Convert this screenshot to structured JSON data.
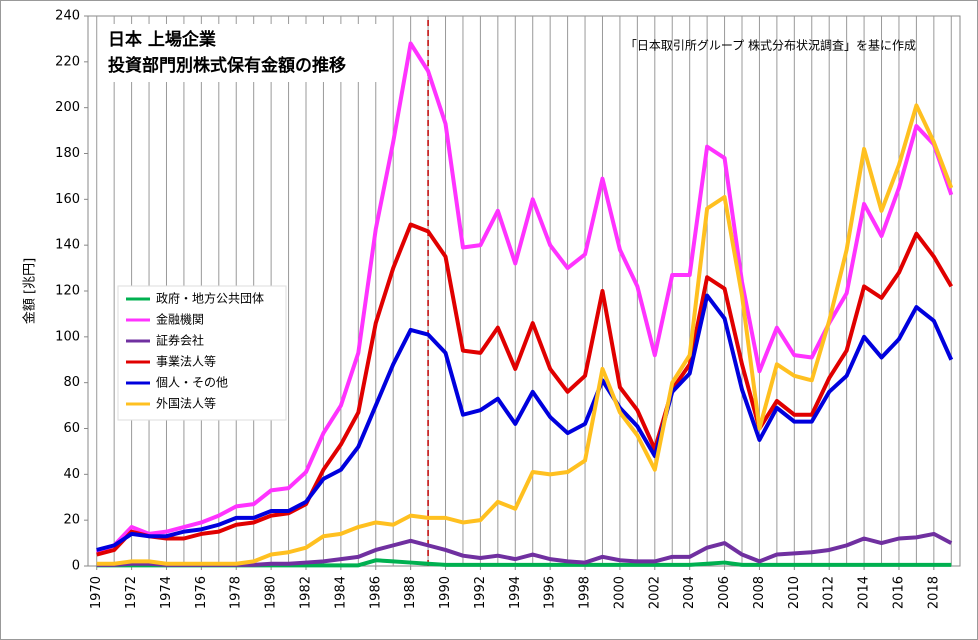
{
  "chart_data": {
    "type": "line",
    "title_lines": [
      "日本 上場企業",
      "投資部門別株式保有金額の推移"
    ],
    "source": "「日本取引所グループ 株式分布状況調査」を基に作成",
    "y_label": "金額 [兆円]",
    "x": [
      1970,
      1971,
      1972,
      1973,
      1974,
      1975,
      1976,
      1977,
      1978,
      1979,
      1980,
      1981,
      1982,
      1983,
      1984,
      1985,
      1986,
      1987,
      1988,
      1989,
      1990,
      1991,
      1992,
      1993,
      1994,
      1995,
      1996,
      1997,
      1998,
      1999,
      2000,
      2001,
      2002,
      2003,
      2004,
      2005,
      2006,
      2007,
      2008,
      2009,
      2010,
      2011,
      2012,
      2013,
      2014,
      2015,
      2016,
      2017,
      2018,
      2019
    ],
    "xlim": [
      1969.5,
      2019.5
    ],
    "xticks": [
      1970,
      1972,
      1974,
      1976,
      1978,
      1980,
      1982,
      1984,
      1986,
      1988,
      1990,
      1992,
      1994,
      1996,
      1998,
      2000,
      2002,
      2004,
      2006,
      2008,
      2010,
      2012,
      2014,
      2016,
      2018
    ],
    "ylim": [
      0,
      240
    ],
    "yticks": [
      0,
      20,
      40,
      60,
      80,
      100,
      120,
      140,
      160,
      180,
      200,
      220,
      240
    ],
    "grid": "x",
    "legend": "left",
    "reference_line": {
      "x": 1989,
      "color": "#c00000",
      "style": "dashed"
    },
    "series": [
      {
        "name": "政府・地方公共団体",
        "color": "#00b050",
        "values": [
          0.3,
          0.3,
          0.3,
          0.3,
          0.3,
          0.3,
          0.3,
          0.3,
          0.3,
          0.3,
          0.3,
          0.3,
          0.3,
          0.3,
          0.3,
          0.3,
          2.5,
          2,
          1.5,
          1,
          0.5,
          0.5,
          0.5,
          0.5,
          0.5,
          0.5,
          0.5,
          0.5,
          0.5,
          0.5,
          0.5,
          0.5,
          0.5,
          0.5,
          0.5,
          1,
          1.5,
          0.5,
          0.5,
          0.5,
          0.5,
          0.5,
          0.5,
          0.5,
          0.5,
          0.5,
          0.5,
          0.5,
          0.5,
          0.5
        ]
      },
      {
        "name": "金融機関",
        "color": "#ff33ff",
        "values": [
          6,
          9,
          17,
          14,
          15,
          17,
          19,
          22,
          26,
          27,
          33,
          34,
          41,
          58,
          70,
          93,
          147,
          185,
          228,
          216,
          193,
          139,
          140,
          155,
          132,
          160,
          140,
          130,
          136,
          169,
          138,
          122,
          92,
          127,
          127,
          183,
          178,
          124,
          85,
          104,
          92,
          91,
          106,
          119,
          158,
          144,
          165,
          192,
          184,
          162
        ]
      },
      {
        "name": "証券会社",
        "color": "#7030a0",
        "values": [
          0.5,
          0.5,
          1,
          1,
          0.5,
          0.5,
          0.5,
          0.5,
          0.5,
          0.5,
          1,
          1,
          1.5,
          2,
          3,
          4,
          7,
          9,
          11,
          9,
          7,
          4.5,
          3.5,
          4.5,
          3,
          5,
          3,
          2,
          1.5,
          4,
          2.5,
          2,
          2,
          4,
          4,
          8,
          10,
          5,
          2,
          5,
          5.5,
          6,
          7,
          9,
          12,
          10,
          12,
          12.5,
          14,
          10
        ]
      },
      {
        "name": "事業法人等",
        "color": "#e00000",
        "values": [
          5,
          7,
          15,
          13,
          12,
          12,
          14,
          15,
          18,
          19,
          22,
          23,
          27,
          42,
          53,
          67,
          106,
          130,
          149,
          146,
          135,
          94,
          93,
          104,
          86,
          106,
          86,
          76,
          83,
          120,
          78,
          68,
          51,
          77,
          88,
          126,
          121,
          88,
          60,
          72,
          66,
          66,
          82,
          94,
          122,
          117,
          128,
          145,
          135,
          122
        ]
      },
      {
        "name": "個人・その他",
        "color": "#0000dd",
        "values": [
          7,
          9,
          14,
          13,
          13,
          15,
          16,
          18,
          21,
          21,
          24,
          24,
          28,
          38,
          42,
          52,
          70,
          88,
          103,
          101,
          93,
          66,
          68,
          73,
          62,
          76,
          65,
          58,
          62,
          81,
          69,
          61,
          48,
          76,
          84,
          118,
          108,
          77,
          55,
          69,
          63,
          63,
          76,
          83,
          100,
          91,
          99,
          113,
          107,
          90
        ]
      },
      {
        "name": "外国法人等",
        "color": "#ffc020",
        "values": [
          1,
          1,
          2,
          2,
          1,
          1,
          1,
          1,
          1,
          2,
          5,
          6,
          8,
          13,
          14,
          17,
          19,
          18,
          22,
          21,
          21,
          19,
          20,
          28,
          25,
          41,
          40,
          41,
          46,
          86,
          67,
          57,
          42,
          80,
          92,
          156,
          161,
          118,
          60,
          88,
          83,
          81,
          107,
          138,
          182,
          155,
          175,
          201,
          185,
          165
        ]
      }
    ]
  }
}
